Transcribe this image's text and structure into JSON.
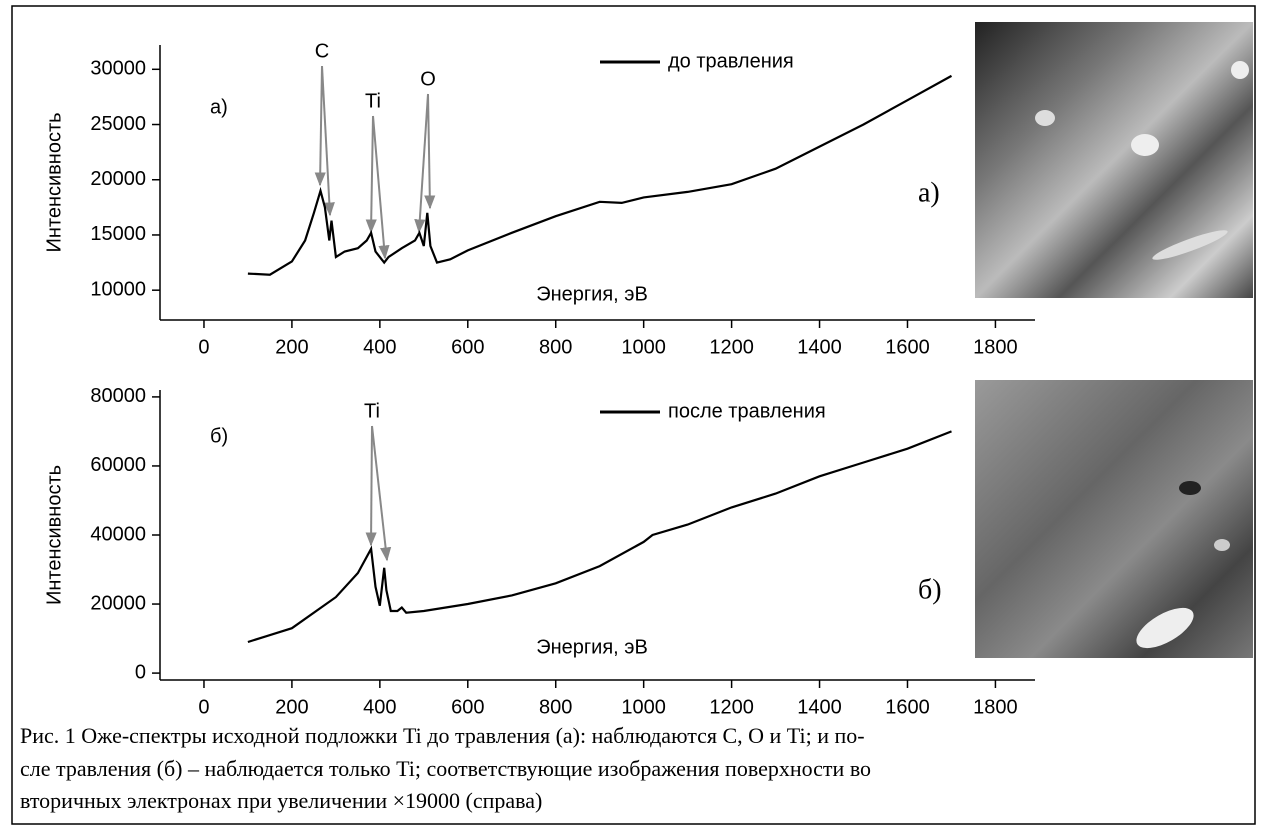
{
  "chart_data": [
    {
      "type": "line",
      "panel_label": "а)",
      "xlabel": "Энергия, эВ",
      "ylabel": "Интенсивность",
      "annotations": [
        "C",
        "Ti",
        "O"
      ],
      "x": [
        100,
        150,
        200,
        230,
        250,
        265,
        275,
        285,
        290,
        300,
        320,
        350,
        370,
        380,
        390,
        410,
        420,
        450,
        480,
        490,
        500,
        508,
        515,
        530,
        560,
        600,
        700,
        800,
        900,
        950,
        1000,
        1100,
        1200,
        1300,
        1400,
        1500,
        1600,
        1700
      ],
      "series": [
        {
          "name": "до травления",
          "color": "#000000",
          "values": [
            11500,
            11400,
            12600,
            14500,
            17000,
            19000,
            17500,
            14500,
            16300,
            13000,
            13500,
            13800,
            14500,
            15200,
            13500,
            12500,
            13000,
            13800,
            14500,
            15200,
            14000,
            17000,
            14000,
            12500,
            12800,
            13600,
            15200,
            16700,
            18000,
            17900,
            18400,
            18900,
            19600,
            21000,
            23000,
            25000,
            27200,
            29400
          ]
        }
      ],
      "xlim": [
        -100,
        1890
      ],
      "ylim": [
        7300,
        32200
      ],
      "xticks": [
        0,
        200,
        400,
        600,
        800,
        1000,
        1200,
        1400,
        1600,
        1800
      ],
      "yticks": [
        10000,
        15000,
        20000,
        25000,
        30000
      ]
    },
    {
      "type": "line",
      "panel_label": "б)",
      "xlabel": "Энергия, эВ",
      "ylabel": "Интенсивность",
      "annotations": [
        "Ti"
      ],
      "x": [
        100,
        200,
        300,
        350,
        380,
        390,
        400,
        410,
        415,
        425,
        440,
        450,
        460,
        500,
        600,
        700,
        800,
        900,
        1000,
        1020,
        1100,
        1200,
        1300,
        1400,
        1500,
        1600,
        1700
      ],
      "series": [
        {
          "name": "после травления",
          "color": "#000000",
          "values": [
            9000,
            13000,
            22000,
            29000,
            36000,
            25000,
            19500,
            30500,
            24000,
            18000,
            18000,
            19000,
            17500,
            18000,
            20000,
            22500,
            26000,
            31000,
            38000,
            40000,
            43000,
            48000,
            52000,
            57000,
            61000,
            65000,
            70000
          ]
        }
      ],
      "xlim": [
        -100,
        1890
      ],
      "ylim": [
        -2000,
        82000
      ],
      "xticks": [
        0,
        200,
        400,
        600,
        800,
        1000,
        1200,
        1400,
        1600,
        1800
      ],
      "yticks": [
        0,
        20000,
        40000,
        60000,
        80000
      ]
    }
  ],
  "images": [
    {
      "label": "а)"
    },
    {
      "label": "б)"
    }
  ],
  "caption": [
    "Рис. 1 Оже-спектры исходной подложки Ti до травления (а): наблюдаются C, O и Ti; и по-",
    "сле травления (б) – наблюдается только Ti; соответствующие изображения поверхности во",
    "вторичных электронах при увеличении ×19000 (справа)"
  ]
}
